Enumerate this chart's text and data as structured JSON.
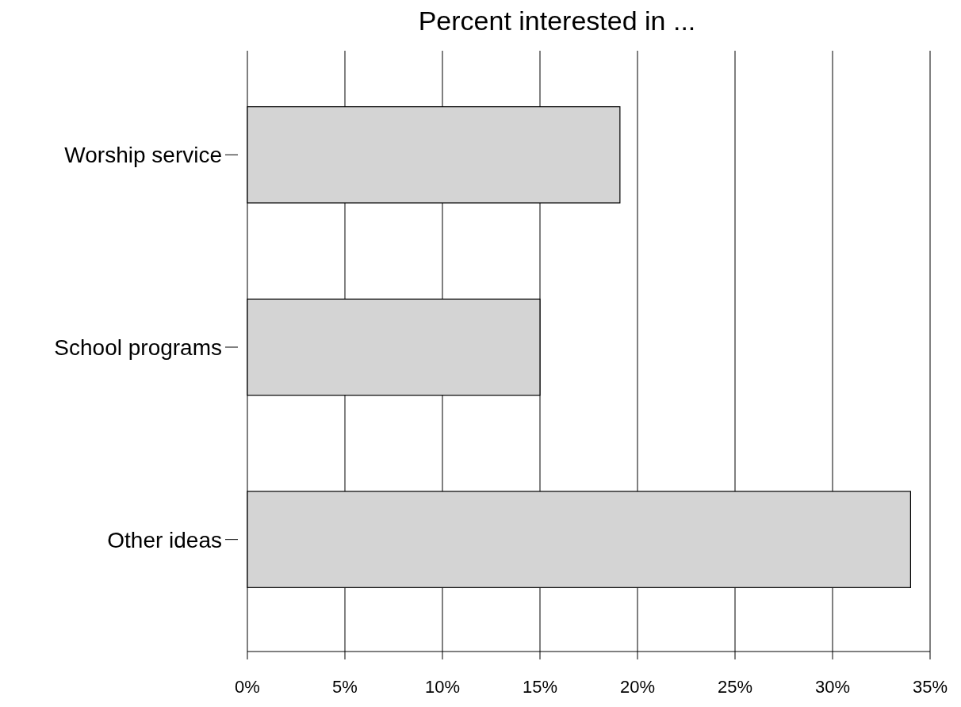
{
  "chart_data": {
    "type": "bar",
    "orientation": "horizontal",
    "title": "Percent interested in ...",
    "categories": [
      "Worship service",
      "School programs",
      "Other ideas"
    ],
    "values": [
      19.1,
      15.0,
      34.0
    ],
    "color": "#d4d4d4",
    "xlim": [
      0,
      35
    ],
    "xticks": [
      {
        "value": 0,
        "label": "0%"
      },
      {
        "value": 5,
        "label": "5%"
      },
      {
        "value": 10,
        "label": "10%"
      },
      {
        "value": 15,
        "label": "15%"
      },
      {
        "value": 20,
        "label": "20%"
      },
      {
        "value": 25,
        "label": "25%"
      },
      {
        "value": 30,
        "label": "30%"
      },
      {
        "value": 35,
        "label": "35%"
      }
    ],
    "grid": "x"
  }
}
